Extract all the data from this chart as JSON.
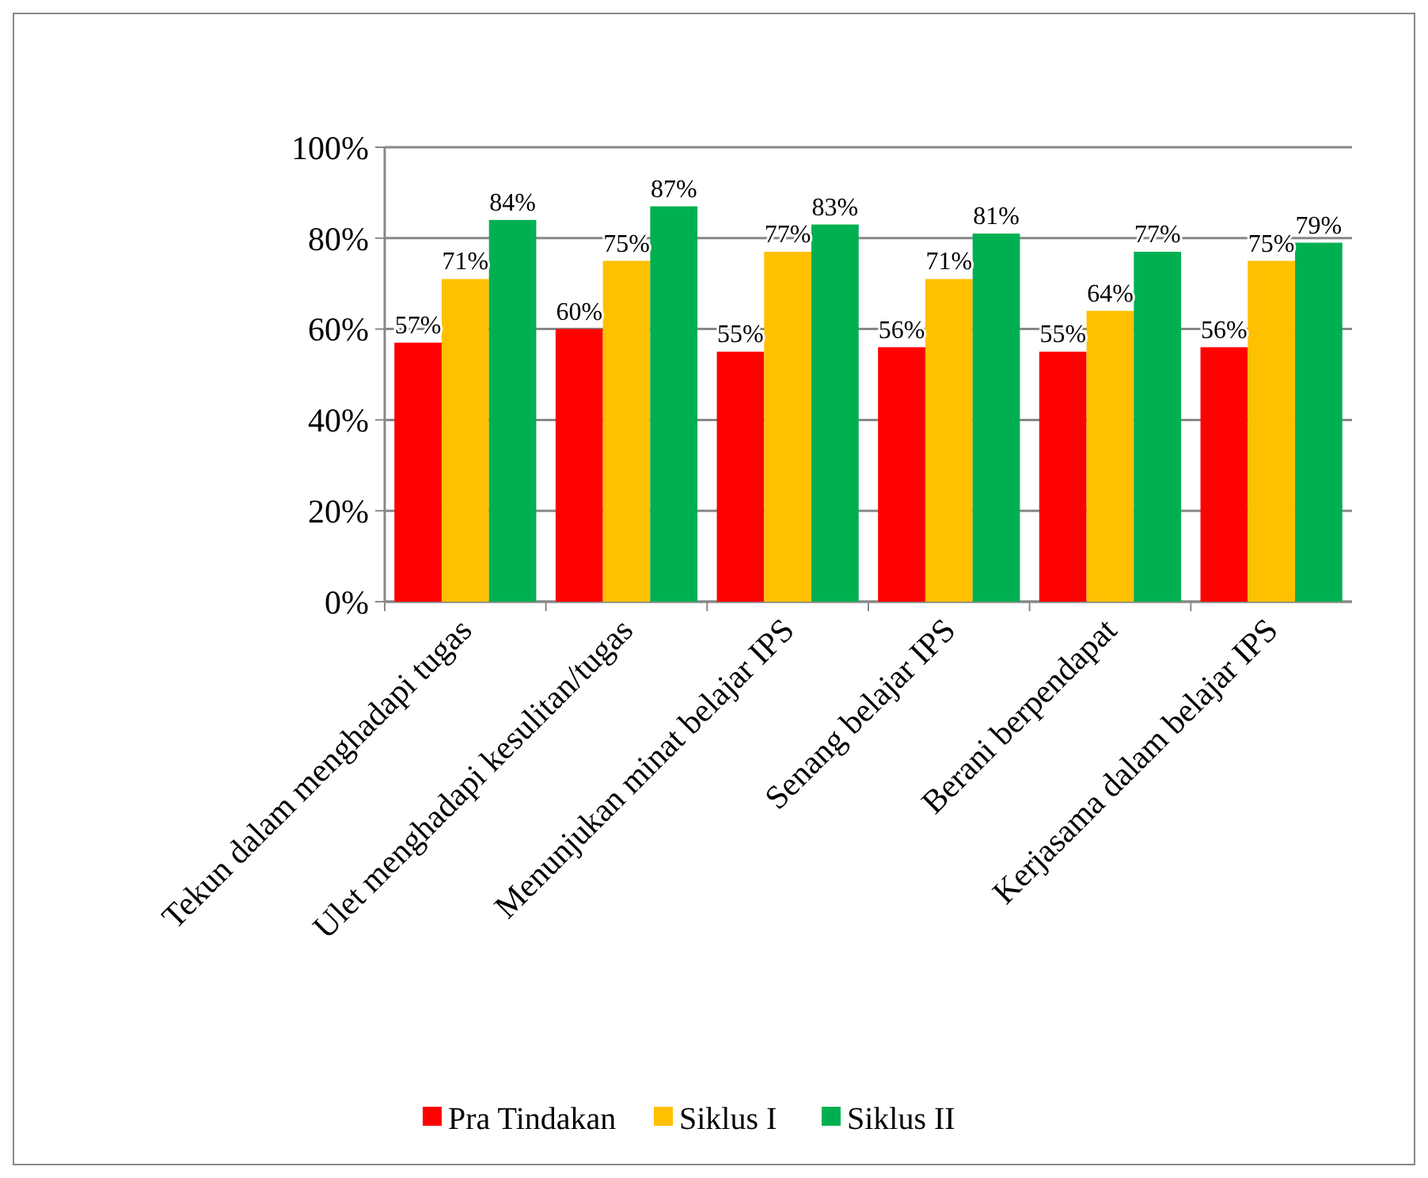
{
  "chart_data": {
    "type": "bar",
    "categories": [
      "Tekun dalam menghadapi tugas",
      "Ulet menghadapi kesulitan/tugas",
      "Menunjukan minat belajar IPS",
      "Senang belajar IPS",
      "Berani berpendapat",
      "Kerjasama dalam belajar IPS"
    ],
    "series": [
      {
        "name": "Pra Tindakan",
        "color": "#ff0000",
        "values": [
          57,
          60,
          55,
          56,
          55,
          56
        ],
        "value_labels": [
          "57%",
          "60%",
          "55%",
          "56%",
          "55%",
          "56%"
        ]
      },
      {
        "name": "Siklus I",
        "color": "#ffc000",
        "values": [
          71,
          75,
          77,
          71,
          64,
          75
        ],
        "value_labels": [
          "71%",
          "75%",
          "77%",
          "71%",
          "64%",
          "75%"
        ]
      },
      {
        "name": "Siklus II",
        "color": "#00b050",
        "values": [
          84,
          87,
          83,
          81,
          77,
          79
        ],
        "value_labels": [
          "84%",
          "87%",
          "83%",
          "81%",
          "77%",
          "79%"
        ]
      }
    ],
    "ylim": [
      0,
      100
    ],
    "yticks": [
      {
        "value": 0,
        "label": "0%"
      },
      {
        "value": 20,
        "label": "20%"
      },
      {
        "value": 40,
        "label": "40%"
      },
      {
        "value": 60,
        "label": "60%"
      },
      {
        "value": 80,
        "label": "80%"
      },
      {
        "value": 100,
        "label": "100%"
      }
    ],
    "grid": "y",
    "legend": "bottom"
  }
}
